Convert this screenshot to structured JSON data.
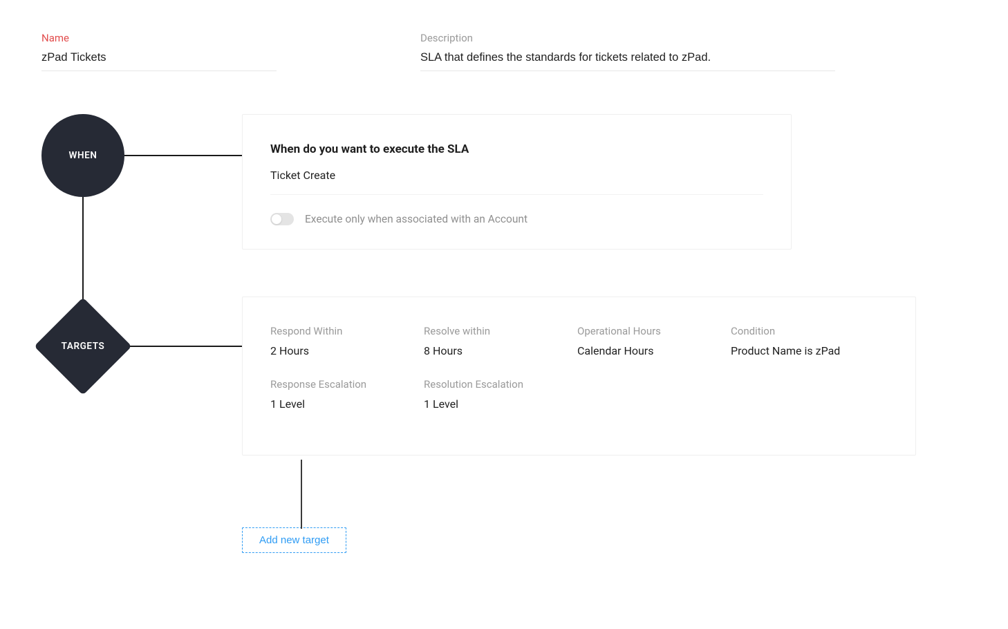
{
  "colors": {
    "node_bg": "#262a35",
    "node_text": "#ffffff",
    "required_label": "#e24d4d",
    "muted_label": "#9a9a9a",
    "text": "#1f1f1f",
    "card_border": "#efefef",
    "divider": "#f1f1f1",
    "link_blue": "#2f9cf4",
    "toggle_track": "#e4e4e4",
    "connector": "#1a1a1a",
    "background": "#ffffff"
  },
  "header": {
    "name_label": "Name",
    "name_value": "zPad Tickets",
    "description_label": "Description",
    "description_value": "SLA that defines the standards for tickets related to zPad."
  },
  "flow": {
    "when_node_label": "WHEN",
    "targets_node_label": "TARGETS"
  },
  "when_card": {
    "title": "When do you want to execute the SLA",
    "value": "Ticket Create",
    "toggle_label": "Execute only when associated with an Account",
    "toggle_on": false
  },
  "targets_card": {
    "items": [
      {
        "label": "Respond Within",
        "value": "2 Hours"
      },
      {
        "label": "Resolve within",
        "value": "8 Hours"
      },
      {
        "label": "Operational Hours",
        "value": "Calendar Hours"
      },
      {
        "label": "Condition",
        "value": "Product Name is zPad"
      },
      {
        "label": "Response Escalation",
        "value": "1 Level"
      },
      {
        "label": "Resolution Escalation",
        "value": "1 Level"
      }
    ]
  },
  "add_target_label": "Add new target"
}
